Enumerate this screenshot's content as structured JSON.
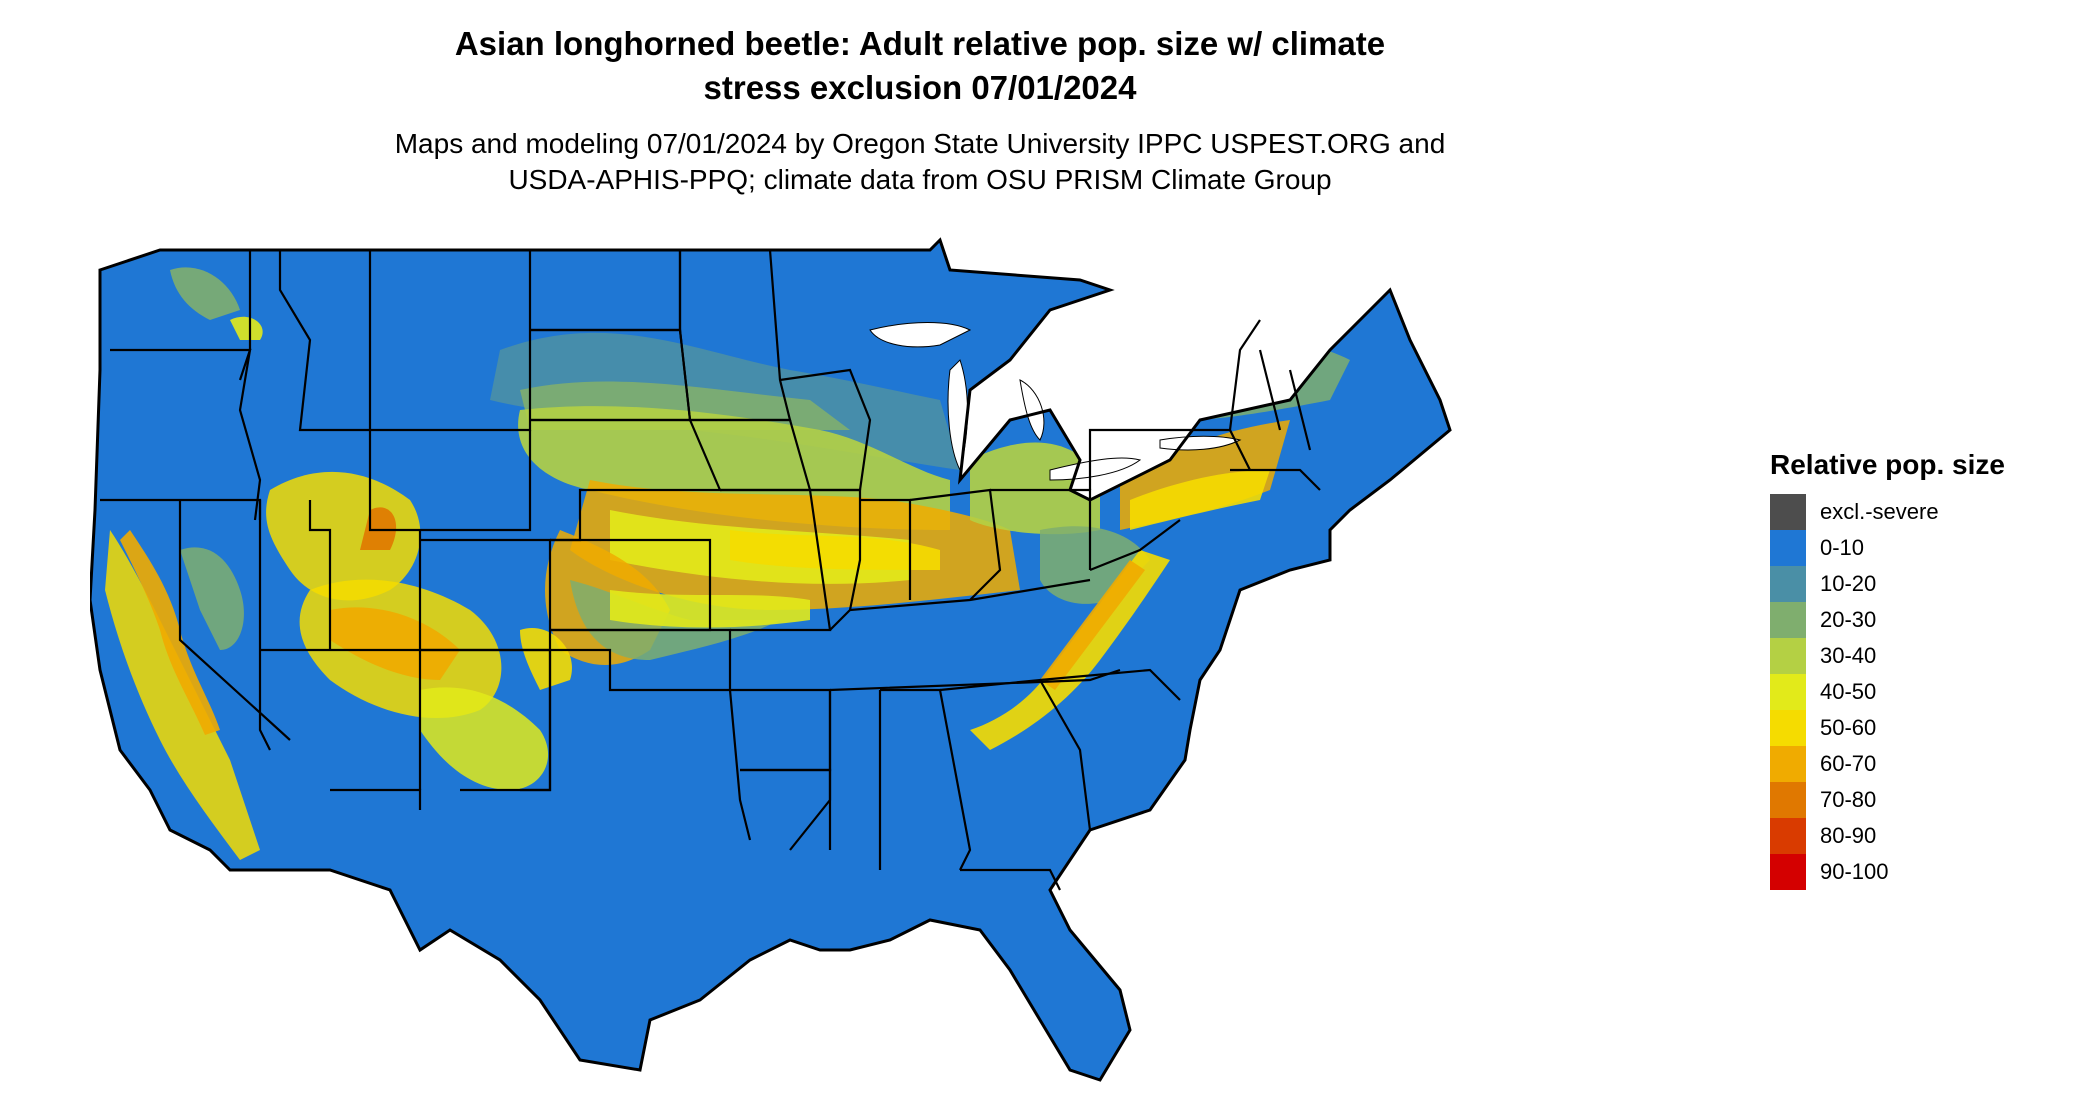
{
  "title": {
    "line1": "Asian longhorned beetle: Adult relative pop. size w/ climate",
    "line2": "stress exclusion 07/01/2024"
  },
  "subtitle": {
    "line1": "Maps and modeling 07/01/2024 by Oregon State University IPPC USPEST.ORG and",
    "line2": "USDA-APHIS-PPQ; climate data from OSU PRISM Climate Group"
  },
  "legend": {
    "title": "Relative pop. size",
    "items": [
      {
        "label": "excl.-severe",
        "color": "#4d4d4d"
      },
      {
        "label": "0-10",
        "color": "#1f77d4"
      },
      {
        "label": "10-20",
        "color": "#4a8fa6"
      },
      {
        "label": "20-30",
        "color": "#7fae6e"
      },
      {
        "label": "30-40",
        "color": "#b4d044"
      },
      {
        "label": "40-50",
        "color": "#e2ea1a"
      },
      {
        "label": "50-60",
        "color": "#f5dc00"
      },
      {
        "label": "60-70",
        "color": "#f0ab00"
      },
      {
        "label": "70-80",
        "color": "#e07800"
      },
      {
        "label": "80-90",
        "color": "#d93b00"
      },
      {
        "label": "90-100",
        "color": "#d40000"
      }
    ]
  },
  "map": {
    "base_color": "#1f77d4",
    "border_color": "#000000"
  }
}
